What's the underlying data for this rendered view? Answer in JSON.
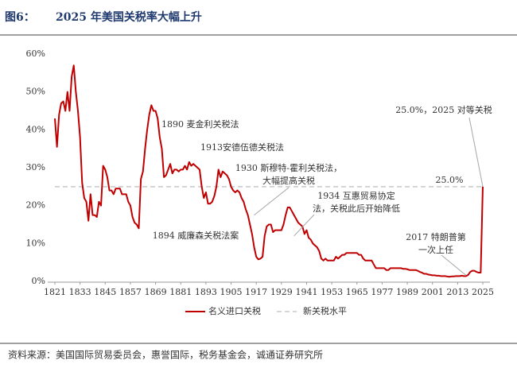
{
  "chart_data": {
    "type": "line",
    "title": [
      "图6：",
      "2025 年美国关税率大幅上升"
    ],
    "source": "资料来源：美国国际贸易委员会，惠誉国际，税务基金会，诚通证券研究所",
    "x": [
      1821,
      1822,
      1823,
      1824,
      1825,
      1826,
      1827,
      1828,
      1829,
      1830,
      1831,
      1832,
      1833,
      1834,
      1835,
      1836,
      1837,
      1838,
      1839,
      1840,
      1841,
      1842,
      1843,
      1844,
      1845,
      1846,
      1847,
      1848,
      1849,
      1850,
      1851,
      1852,
      1853,
      1854,
      1855,
      1856,
      1857,
      1858,
      1859,
      1860,
      1861,
      1862,
      1863,
      1864,
      1865,
      1866,
      1867,
      1868,
      1869,
      1870,
      1871,
      1872,
      1873,
      1874,
      1875,
      1876,
      1877,
      1878,
      1879,
      1880,
      1881,
      1882,
      1883,
      1884,
      1885,
      1886,
      1887,
      1888,
      1889,
      1890,
      1891,
      1892,
      1893,
      1894,
      1895,
      1896,
      1897,
      1898,
      1899,
      1900,
      1901,
      1902,
      1903,
      1904,
      1905,
      1906,
      1907,
      1908,
      1909,
      1910,
      1911,
      1912,
      1913,
      1914,
      1915,
      1916,
      1917,
      1918,
      1919,
      1920,
      1921,
      1922,
      1923,
      1924,
      1925,
      1926,
      1927,
      1928,
      1929,
      1930,
      1931,
      1932,
      1933,
      1934,
      1935,
      1936,
      1937,
      1938,
      1939,
      1940,
      1941,
      1942,
      1943,
      1944,
      1945,
      1946,
      1947,
      1948,
      1949,
      1950,
      1951,
      1952,
      1953,
      1954,
      1955,
      1956,
      1957,
      1958,
      1959,
      1960,
      1961,
      1962,
      1963,
      1964,
      1965,
      1966,
      1967,
      1968,
      1969,
      1970,
      1971,
      1972,
      1973,
      1974,
      1975,
      1976,
      1977,
      1978,
      1979,
      1980,
      1981,
      1982,
      1983,
      1984,
      1985,
      1986,
      1987,
      1988,
      1989,
      1990,
      1991,
      1992,
      1993,
      1994,
      1995,
      1996,
      1997,
      1998,
      1999,
      2000,
      2001,
      2002,
      2003,
      2004,
      2005,
      2006,
      2007,
      2008,
      2009,
      2010,
      2011,
      2012,
      2013,
      2014,
      2015,
      2016,
      2017,
      2018,
      2019,
      2020,
      2021,
      2022,
      2023,
      2024,
      2025
    ],
    "series": [
      {
        "name": "名义进口关税",
        "color": "#c00000",
        "values": [
          43,
          35.5,
          44,
          47,
          47.5,
          45,
          50,
          45,
          54,
          57,
          50,
          45,
          38,
          26,
          22,
          21,
          16,
          23,
          17.5,
          17.5,
          17,
          21,
          20,
          30.5,
          29.5,
          27.5,
          24,
          24,
          23,
          24.5,
          24.5,
          24.5,
          23,
          23,
          23,
          21,
          20,
          17,
          15.5,
          15,
          14,
          27,
          29,
          35,
          40,
          44,
          46.5,
          45,
          45,
          43,
          38,
          35,
          27.5,
          28,
          29.5,
          31,
          28.5,
          29.5,
          29.5,
          29,
          29.5,
          29.5,
          30.5,
          29.5,
          31.5,
          30.5,
          31,
          30.5,
          30,
          29.5,
          25,
          22,
          23.5,
          20.5,
          20.5,
          21,
          22.5,
          25,
          29.5,
          27.5,
          29,
          28.5,
          28,
          27,
          25,
          24,
          23.5,
          24,
          23.5,
          22,
          21,
          19,
          17.5,
          15,
          12.5,
          9,
          6.5,
          5.8,
          6,
          6.5,
          12,
          14.5,
          15,
          15,
          13,
          13.5,
          13.5,
          13.5,
          13.5,
          15,
          17.5,
          19.5,
          19.5,
          18.5,
          17.5,
          16.5,
          15.5,
          15,
          14.5,
          12.5,
          13.5,
          11.5,
          11,
          10,
          9.5,
          9,
          8,
          6,
          5.5,
          6,
          5.5,
          5.5,
          5.5,
          5.5,
          6.5,
          6,
          6.5,
          7,
          7,
          7.5,
          7.5,
          7.5,
          7.5,
          7.5,
          7.5,
          7,
          7,
          6,
          5.5,
          5.5,
          5.5,
          5.5,
          4.5,
          3.5,
          3.5,
          3.5,
          3.5,
          3.5,
          3,
          3,
          3.5,
          3.5,
          3.5,
          3.5,
          3.5,
          3.5,
          3.3,
          3.3,
          3.2,
          3,
          3,
          3,
          3,
          2.8,
          2.5,
          2.3,
          2,
          2,
          1.8,
          1.7,
          1.6,
          1.6,
          1.5,
          1.5,
          1.4,
          1.4,
          1.4,
          1.3,
          1.2,
          1.3,
          1.3,
          1.4,
          1.4,
          1.4,
          1.5,
          1.4,
          1.4,
          1.7,
          2.5,
          2.8,
          2.8,
          2.5,
          2.3,
          2.3,
          25
        ]
      }
    ],
    "reference_line": {
      "name": "新关税水平",
      "color": "#c8c8c8",
      "value": 25,
      "value_label": "25.0%"
    },
    "annotations": [
      {
        "text": [
          "1890 麦金利关税法"
        ]
      },
      {
        "text": [
          "1913安德伍德关税法"
        ]
      },
      {
        "text": [
          "1930 斯穆特-霍利关税法，",
          "大幅提高关税"
        ],
        "x": 1916,
        "y": 17.5
      },
      {
        "text": [
          "1934 互惠贸易协定",
          "法，关税此后开始降低"
        ],
        "x": 1935,
        "y": 12
      },
      {
        "text": [
          "1894 威廉森关税法案"
        ]
      },
      {
        "text": [
          "2017 特朗普第",
          "一次上任"
        ],
        "x": 2017,
        "y": 1.6
      },
      {
        "text": [
          "25.0%，2025 对等关税"
        ],
        "x": 2025,
        "y": 25
      }
    ],
    "xlim": [
      1821,
      2025
    ],
    "xticks": [
      1821,
      1833,
      1845,
      1857,
      1869,
      1881,
      1893,
      1905,
      1917,
      1929,
      1941,
      1953,
      1965,
      1977,
      1989,
      2001,
      2013,
      2025
    ],
    "ylim": [
      0,
      60
    ],
    "yticks": [
      {
        "value": 0,
        "label": "0%"
      },
      {
        "value": 10,
        "label": "10%"
      },
      {
        "value": 20,
        "label": "20%"
      },
      {
        "value": 30,
        "label": "30%"
      },
      {
        "value": 40,
        "label": "40%"
      },
      {
        "value": 50,
        "label": "50%"
      },
      {
        "value": 60,
        "label": "60%"
      }
    ]
  }
}
